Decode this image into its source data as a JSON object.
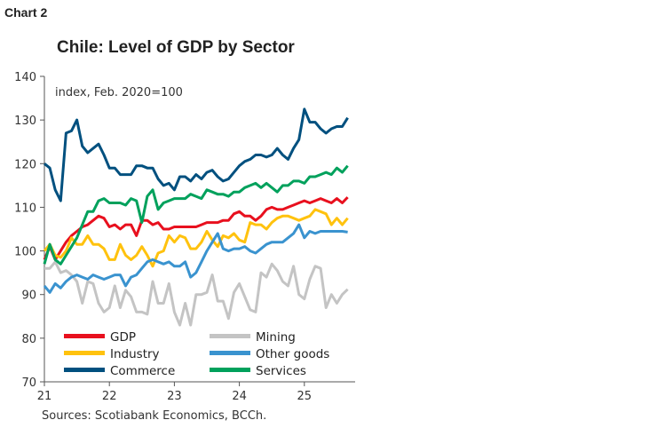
{
  "header": {
    "tag": "Chart 2"
  },
  "source": "Sources: Scotiabank Economics, BCCh.",
  "chart_data": {
    "type": "line",
    "title": "Chile: Level of GDP by Sector",
    "ylabel": "index, Feb. 2020=100",
    "ylim": [
      70,
      140
    ],
    "yticks": [
      70,
      80,
      90,
      100,
      110,
      120,
      130,
      140
    ],
    "xticks": [
      "21",
      "22",
      "23",
      "24",
      "25"
    ],
    "x_start": "2021-01",
    "x_end": "2025-09",
    "frequency": "monthly",
    "grid": false,
    "legend": "bottom-inside",
    "series": [
      {
        "name": "GDP",
        "color": "#e8101e",
        "values": [
          98,
          101,
          98,
          100,
          102,
          103.5,
          104.5,
          105.5,
          106,
          107,
          108,
          107.5,
          105.5,
          106,
          105,
          106,
          106,
          103.5,
          107,
          107,
          106,
          106.5,
          105,
          105,
          105.5,
          105.5,
          105.5,
          105.5,
          105.5,
          106,
          106.5,
          106.5,
          106.5,
          107,
          107,
          108.5,
          109,
          108,
          108,
          107,
          108,
          109.5,
          110,
          109.5,
          109.5,
          110,
          110.5,
          111,
          111.5,
          111,
          111.5,
          112,
          111.5,
          111,
          112,
          111,
          112.3
        ]
      },
      {
        "name": "Mining",
        "color": "#c4c4c4",
        "values": [
          96,
          96,
          97.5,
          95,
          95.5,
          94.5,
          93,
          88,
          93,
          92.5,
          88,
          86,
          87,
          92,
          87,
          91,
          89.5,
          86,
          86,
          85.5,
          93,
          88,
          88,
          92.5,
          86,
          83,
          88,
          83,
          90,
          90,
          90.5,
          94.5,
          88.5,
          88.5,
          84.5,
          90.5,
          92.5,
          89.5,
          86.5,
          86,
          95,
          94,
          97,
          95.5,
          93,
          92,
          96.5,
          90,
          89,
          93.5,
          96.5,
          96,
          87,
          90,
          88,
          90,
          91.2
        ]
      },
      {
        "name": "Industry",
        "color": "#ffc20e",
        "values": [
          100,
          101.5,
          99,
          98.5,
          100,
          103,
          101.5,
          101.5,
          103.5,
          101.5,
          101.5,
          100.5,
          98,
          98,
          101.5,
          99,
          98,
          99,
          101,
          99,
          96.5,
          99.5,
          100,
          103.5,
          102,
          103.5,
          103,
          100.5,
          100.5,
          102,
          104.5,
          102.5,
          101,
          103.5,
          103,
          104,
          102.5,
          102,
          106.5,
          106,
          106,
          105,
          106.5,
          107.5,
          108,
          108,
          107.5,
          107,
          107.5,
          108,
          109.5,
          109,
          108.5,
          106,
          107.5,
          106,
          107.5
        ]
      },
      {
        "name": "Other goods",
        "color": "#3a93cf",
        "values": [
          92,
          90.5,
          92.5,
          91.5,
          93,
          94,
          94.5,
          94,
          93.5,
          94.5,
          94,
          93.5,
          94,
          94.5,
          94.5,
          92,
          94,
          94.5,
          96,
          97.5,
          98,
          97.5,
          97,
          97.5,
          96.5,
          96.5,
          97.5,
          94,
          95,
          97.5,
          100,
          102,
          104,
          100.5,
          100,
          100.5,
          100.5,
          101,
          100,
          99.5,
          100.5,
          101.5,
          102,
          102,
          102,
          103,
          104,
          106,
          103,
          104.5,
          104,
          104.5,
          104.5,
          104.5,
          104.5,
          104.5,
          104.3
        ]
      },
      {
        "name": "Commerce",
        "color": "#00507f",
        "values": [
          120,
          119,
          114,
          111.5,
          127,
          127.5,
          130,
          124,
          122.5,
          123.5,
          124.5,
          122,
          119,
          119,
          117.5,
          117.5,
          117.5,
          119.5,
          119.5,
          119,
          119,
          116.5,
          115,
          115.5,
          114,
          117,
          117,
          116,
          117.5,
          116.5,
          118,
          118.5,
          117,
          116,
          116.5,
          118,
          119.5,
          120.5,
          121,
          122,
          122,
          121.5,
          122,
          123.5,
          122,
          121,
          123.5,
          125.5,
          132.5,
          129.5,
          129.5,
          128,
          127,
          128,
          128.5,
          128.5,
          130.5
        ]
      },
      {
        "name": "Services",
        "color": "#00a15c",
        "values": [
          97,
          101.5,
          98,
          97,
          99,
          101,
          103,
          106,
          109,
          109,
          111.5,
          112,
          111,
          111,
          111,
          110.5,
          112,
          111.5,
          106.5,
          112.5,
          114,
          109.5,
          111,
          111.5,
          112,
          112,
          112,
          113,
          112.5,
          112,
          114,
          113.5,
          113,
          113,
          112.5,
          113.5,
          113.5,
          114.5,
          115,
          115.5,
          114.5,
          115.5,
          114.5,
          113.5,
          115,
          115,
          116,
          116,
          115.5,
          117,
          117,
          117.5,
          118,
          117.5,
          119,
          118,
          119.5
        ]
      }
    ]
  }
}
